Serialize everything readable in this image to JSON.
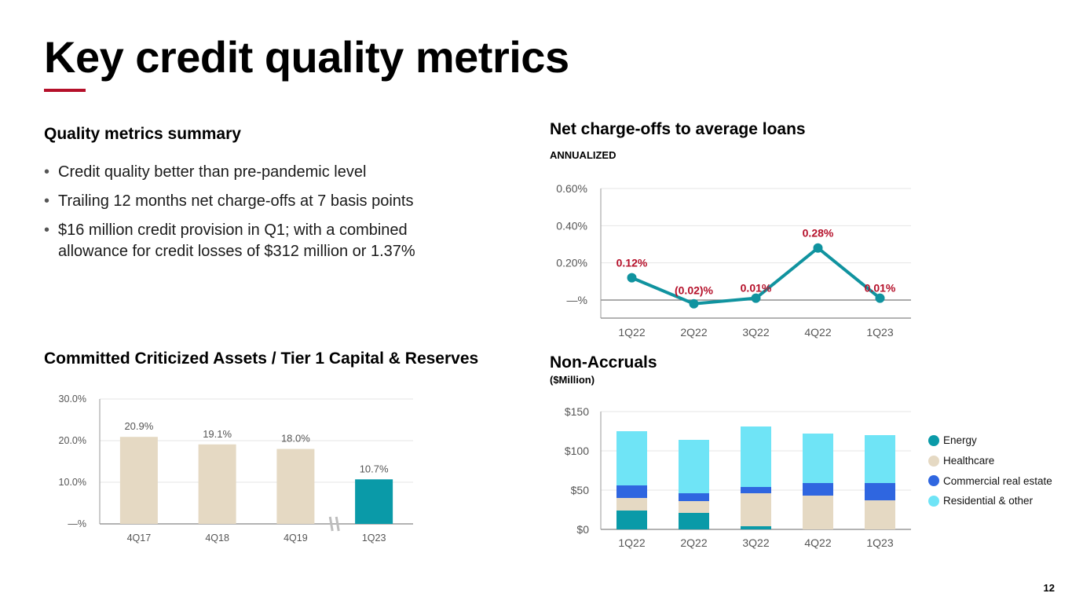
{
  "title": "Key credit quality metrics",
  "accent_color": "#b5102a",
  "summary": {
    "heading": "Quality metrics summary",
    "bullets": [
      "Credit quality better than pre-pandemic level",
      "Trailing 12 months net charge-offs at 7 basis points",
      "$16 million credit provision in Q1; with a combined allowance for credit losses of $312 million or 1.37%"
    ]
  },
  "criticized": {
    "heading": "Committed Criticized Assets / Tier 1 Capital & Reserves"
  },
  "nco": {
    "heading": "Net charge-offs to average loans",
    "subheading": "ANNUALIZED"
  },
  "nonaccruals": {
    "heading": "Non-Accruals",
    "subheading": "($Million)"
  },
  "page_number": "12",
  "chart_data": [
    {
      "id": "criticized",
      "type": "bar",
      "title": "Committed Criticized Assets / Tier 1 Capital & Reserves",
      "categories": [
        "4Q17",
        "4Q18",
        "4Q19",
        "1Q23"
      ],
      "values": [
        20.9,
        19.1,
        18.0,
        10.7
      ],
      "value_labels": [
        "20.9%",
        "19.1%",
        "18.0%",
        "10.7%"
      ],
      "colors": [
        "#e5d9c3",
        "#e5d9c3",
        "#e5d9c3",
        "#0a9aa8"
      ],
      "yticks": [
        0,
        10,
        20,
        30
      ],
      "ytick_labels": [
        "—%",
        "10.0%",
        "20.0%",
        "30.0%"
      ],
      "ylim": [
        0,
        30
      ],
      "axis_break_between": [
        "4Q19",
        "1Q23"
      ],
      "grid": true
    },
    {
      "id": "nco",
      "type": "line",
      "title": "Net charge-offs to average loans",
      "subtitle": "ANNUALIZED",
      "categories": [
        "1Q22",
        "2Q22",
        "3Q22",
        "4Q22",
        "1Q23"
      ],
      "values": [
        0.12,
        -0.02,
        0.01,
        0.28,
        0.01
      ],
      "value_labels": [
        "0.12%",
        "(0.02)%",
        "0.01%",
        "0.28%",
        "0.01%"
      ],
      "yticks": [
        0,
        0.2,
        0.4,
        0.6
      ],
      "ytick_labels": [
        "—%",
        "0.20%",
        "0.40%",
        "0.60%"
      ],
      "ylim": [
        -0.08,
        0.6
      ],
      "line_color": "#10939f",
      "label_color": "#b5102a",
      "grid": true
    },
    {
      "id": "nonaccruals",
      "type": "bar",
      "stacked": true,
      "title": "Non-Accruals",
      "subtitle": "($Million)",
      "categories": [
        "1Q22",
        "2Q22",
        "3Q22",
        "4Q22",
        "1Q23"
      ],
      "series": [
        {
          "name": "Energy",
          "color": "#0a9aa8",
          "values": [
            24,
            21,
            4,
            0,
            0
          ]
        },
        {
          "name": "Healthcare",
          "color": "#e5d9c3",
          "values": [
            16,
            15,
            42,
            43,
            37
          ]
        },
        {
          "name": "Commercial real estate",
          "color": "#2f66e0",
          "values": [
            16,
            10,
            8,
            16,
            22
          ]
        },
        {
          "name": "Residential & other",
          "color": "#6fe4f6",
          "values": [
            69,
            68,
            77,
            63,
            61
          ]
        }
      ],
      "yticks": [
        0,
        50,
        100,
        150
      ],
      "ytick_labels": [
        "$0",
        "$50",
        "$100",
        "$150"
      ],
      "ylim": [
        0,
        150
      ],
      "legend_position": "right",
      "grid": true
    }
  ]
}
